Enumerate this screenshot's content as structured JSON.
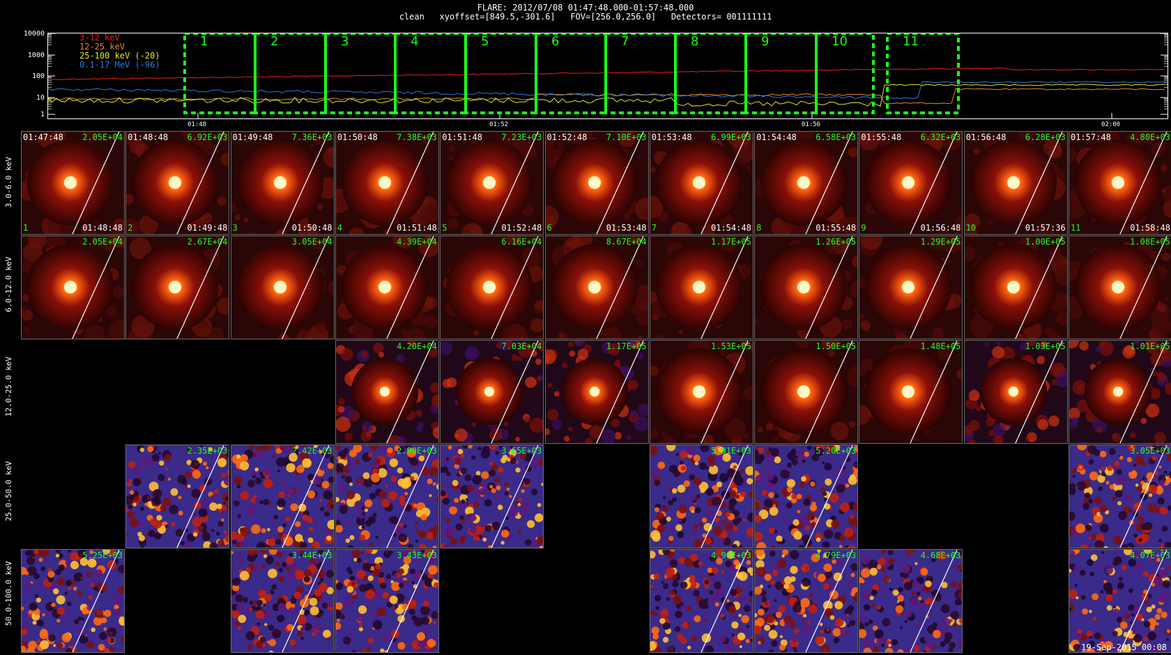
{
  "header": {
    "line1": "FLARE: 2012/07/08 01:47:48.000-01:57:48.000",
    "line2": "clean   xyoffset=[849.5,-301.6]   FOV=[256.0,256.0]   Detectors= 001111111"
  },
  "lightcurve": {
    "legend": [
      {
        "label": "3-12 keV",
        "color": "#e8201a"
      },
      {
        "label": "12-25 keV",
        "color": "#e88a1a"
      },
      {
        "label": "25-100 keV (-20)",
        "color": "#e8e81a"
      },
      {
        "label": "0.1-17 MeV (-96)",
        "color": "#2a7ae8"
      }
    ],
    "y_ticks": [
      "10000",
      "1000",
      "100",
      "10",
      "1"
    ],
    "x_ticks": [
      "01:48",
      "01:52",
      "01:56",
      "02:00"
    ],
    "intervals": [
      "1",
      "2",
      "3",
      "4",
      "5",
      "6",
      "7",
      "8",
      "9",
      "10",
      "11"
    ],
    "box_color": "#1aff1a"
  },
  "rows": [
    {
      "label": "3.0-6.0 keV",
      "tiles": [
        {
          "col": 0,
          "val": "2.05E+04",
          "start": "01:47:48",
          "end": "01:48:48",
          "idx": "1",
          "type": "src"
        },
        {
          "col": 1,
          "val": "6.92E+03",
          "start": "01:48:48",
          "end": "01:49:48",
          "idx": "2",
          "type": "src"
        },
        {
          "col": 2,
          "val": "7.36E+03",
          "start": "01:49:48",
          "end": "01:50:48",
          "idx": "3",
          "type": "src"
        },
        {
          "col": 3,
          "val": "7.38E+03",
          "start": "01:50:48",
          "end": "01:51:48",
          "idx": "4",
          "type": "src"
        },
        {
          "col": 4,
          "val": "7.23E+03",
          "start": "01:51:48",
          "end": "01:52:48",
          "idx": "5",
          "type": "src"
        },
        {
          "col": 5,
          "val": "7.10E+03",
          "start": "01:52:48",
          "end": "01:53:48",
          "idx": "6",
          "type": "src"
        },
        {
          "col": 6,
          "val": "6.99E+03",
          "start": "01:53:48",
          "end": "01:54:48",
          "idx": "7",
          "type": "src"
        },
        {
          "col": 7,
          "val": "6.58E+03",
          "start": "01:54:48",
          "end": "01:55:48",
          "idx": "8",
          "type": "src"
        },
        {
          "col": 8,
          "val": "6.32E+03",
          "start": "01:55:48",
          "end": "01:56:48",
          "idx": "9",
          "type": "src"
        },
        {
          "col": 9,
          "val": "6.28E+03",
          "start": "01:56:48",
          "end": "01:57:36",
          "idx": "10",
          "type": "src"
        },
        {
          "col": 10,
          "val": "4.80E+03",
          "start": "01:57:48",
          "end": "01:58:48",
          "idx": "11",
          "type": "src"
        }
      ]
    },
    {
      "label": "6.0-12.0 keV",
      "tiles": [
        {
          "col": 0,
          "val": "2.05E+04",
          "type": "src"
        },
        {
          "col": 1,
          "val": "2.67E+04",
          "type": "src"
        },
        {
          "col": 2,
          "val": "3.05E+04",
          "type": "src"
        },
        {
          "col": 3,
          "val": "4.39E+04",
          "type": "src"
        },
        {
          "col": 4,
          "val": "6.16E+04",
          "type": "src"
        },
        {
          "col": 5,
          "val": "8.67E+04",
          "type": "src"
        },
        {
          "col": 6,
          "val": "1.17E+05",
          "type": "src"
        },
        {
          "col": 7,
          "val": "1.26E+05",
          "type": "src"
        },
        {
          "col": 8,
          "val": "1.29E+05",
          "type": "src"
        },
        {
          "col": 9,
          "val": "1.00E+05",
          "type": "src"
        },
        {
          "col": 10,
          "val": "1.08E+05",
          "type": "src"
        }
      ]
    },
    {
      "label": "12.0-25.0 keV",
      "tiles": [
        {
          "col": 3,
          "val": "4.20E+04",
          "type": "mid"
        },
        {
          "col": 4,
          "val": "7.03E+04",
          "type": "mid"
        },
        {
          "col": 5,
          "val": "1.17E+05",
          "type": "mid"
        },
        {
          "col": 6,
          "val": "1.53E+05",
          "type": "src"
        },
        {
          "col": 7,
          "val": "1.50E+05",
          "type": "src"
        },
        {
          "col": 8,
          "val": "1.48E+05",
          "type": "src"
        },
        {
          "col": 9,
          "val": "1.03E+05",
          "type": "mid"
        },
        {
          "col": 10,
          "val": "1.01E+05",
          "type": "mid"
        }
      ]
    },
    {
      "label": "25.0-50.0 keV",
      "tiles": [
        {
          "col": 1,
          "val": "2.35E+03",
          "type": "noise"
        },
        {
          "col": 2,
          "val": "2.42E+03",
          "type": "noise"
        },
        {
          "col": 3,
          "val": "2.90E+03",
          "type": "noise"
        },
        {
          "col": 4,
          "val": "3.65E+03",
          "type": "noise"
        },
        {
          "col": 6,
          "val": "5.91E+03",
          "type": "noise"
        },
        {
          "col": 7,
          "val": "5.20E+03",
          "type": "noise"
        },
        {
          "col": 10,
          "val": "3.05E+03",
          "type": "noise"
        }
      ]
    },
    {
      "label": "50.0-100.0 keV",
      "tiles": [
        {
          "col": 0,
          "val": "5.25E+03",
          "type": "noise"
        },
        {
          "col": 2,
          "val": "3.44E+03",
          "type": "noise"
        },
        {
          "col": 3,
          "val": "3.43E+03",
          "type": "noise"
        },
        {
          "col": 6,
          "val": "4.96E+03",
          "type": "noise"
        },
        {
          "col": 7,
          "val": "4.79E+03",
          "type": "noise"
        },
        {
          "col": 8,
          "val": "4.68E+03",
          "type": "noise"
        },
        {
          "col": 10,
          "val": "4.07E+03",
          "type": "noise"
        }
      ]
    }
  ],
  "footer": {
    "stamp": "19-Sep-2015 00:08"
  }
}
